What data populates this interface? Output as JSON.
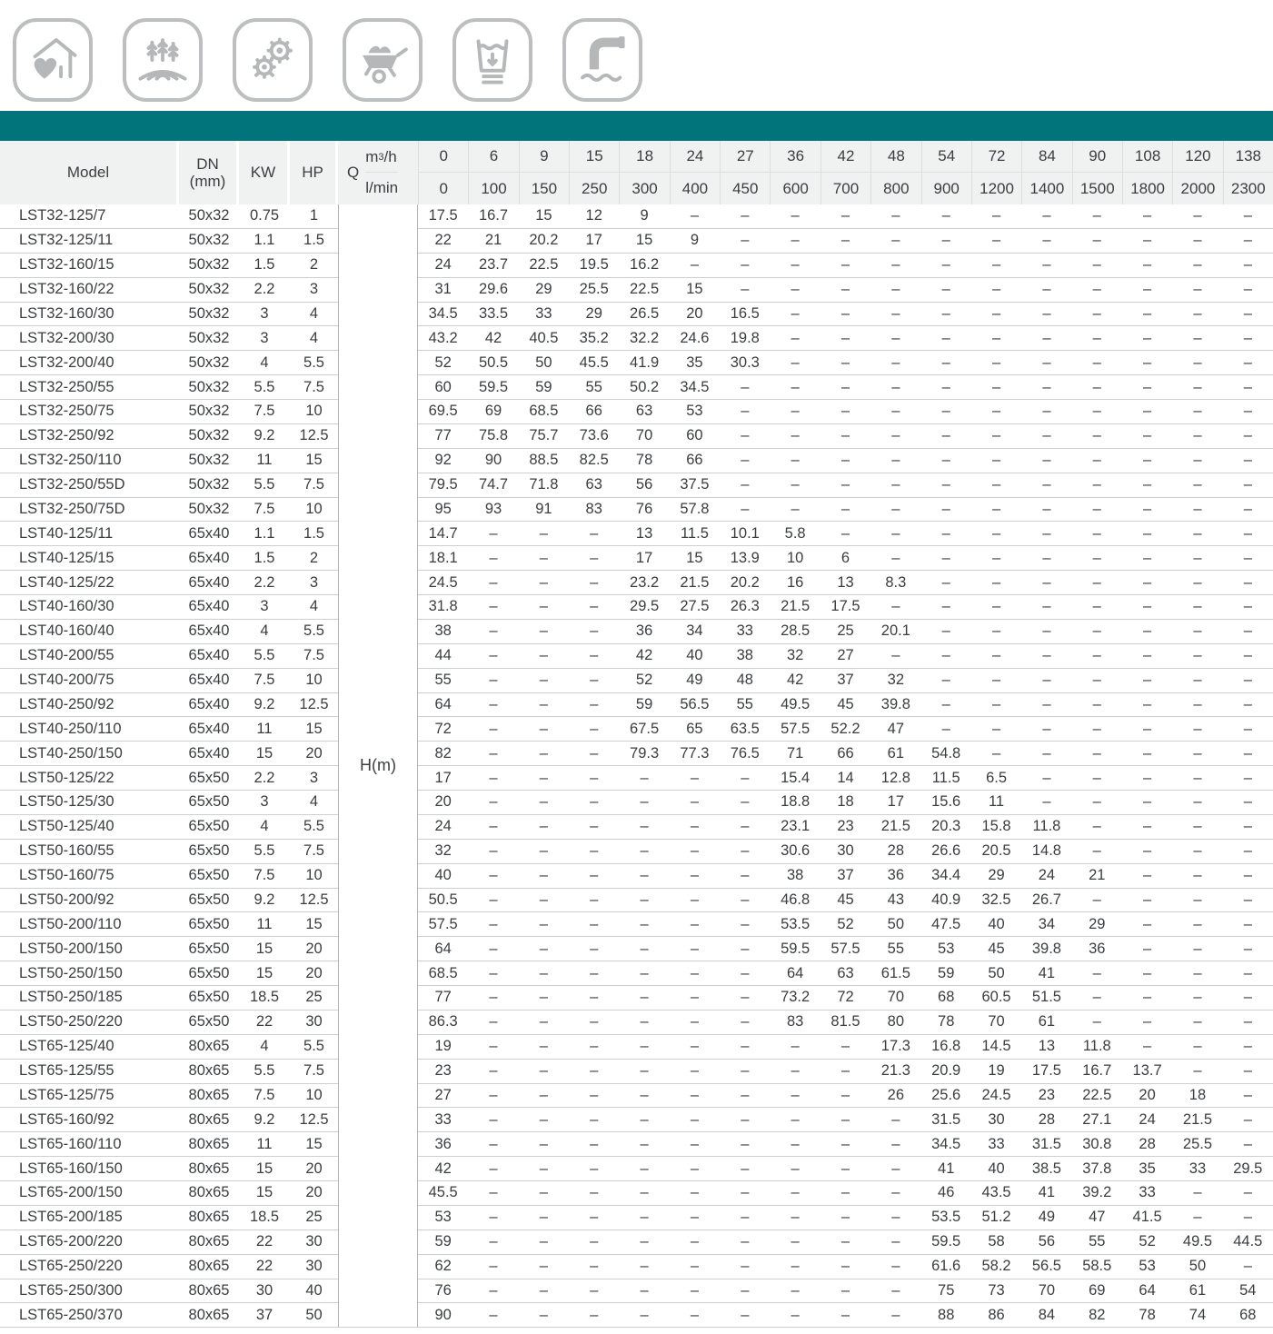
{
  "accent_color": "#00737b",
  "icons": [
    {
      "name": "house-heart-icon",
      "meaning": "domestic use"
    },
    {
      "name": "agriculture-icon",
      "meaning": "irrigation / farming"
    },
    {
      "name": "gears-icon",
      "meaning": "industrial use"
    },
    {
      "name": "wheelbarrow-icon",
      "meaning": "construction"
    },
    {
      "name": "water-tank-icon",
      "meaning": "water supply / drainage"
    },
    {
      "name": "water-pipe-icon",
      "meaning": "water transfer"
    }
  ],
  "header": {
    "model": "Model",
    "dn": "DN\n(mm)",
    "kw": "KW",
    "hp": "HP",
    "q": "Q",
    "unit_top": "m³/h",
    "unit_bottom": "l/min",
    "h_label": "H(m)"
  },
  "flow_m3h": [
    "0",
    "6",
    "9",
    "15",
    "18",
    "24",
    "27",
    "36",
    "42",
    "48",
    "54",
    "72",
    "84",
    "90",
    "108",
    "120",
    "138"
  ],
  "flow_lmin": [
    "0",
    "100",
    "150",
    "250",
    "300",
    "400",
    "450",
    "600",
    "700",
    "800",
    "900",
    "1200",
    "1400",
    "1500",
    "1800",
    "2000",
    "2300"
  ],
  "rows": [
    {
      "model": "LST32-125/7",
      "dn": "50x32",
      "kw": "0.75",
      "hp": "1",
      "h": [
        "17.5",
        "16.7",
        "15",
        "12",
        "9",
        "–",
        "–",
        "–",
        "–",
        "–",
        "–",
        "–",
        "–",
        "–",
        "–",
        "–",
        "–"
      ]
    },
    {
      "model": "LST32-125/11",
      "dn": "50x32",
      "kw": "1.1",
      "hp": "1.5",
      "h": [
        "22",
        "21",
        "20.2",
        "17",
        "15",
        "9",
        "–",
        "–",
        "–",
        "–",
        "–",
        "–",
        "–",
        "–",
        "–",
        "–",
        "–"
      ]
    },
    {
      "model": "LST32-160/15",
      "dn": "50x32",
      "kw": "1.5",
      "hp": "2",
      "h": [
        "24",
        "23.7",
        "22.5",
        "19.5",
        "16.2",
        "–",
        "–",
        "–",
        "–",
        "–",
        "–",
        "–",
        "–",
        "–",
        "–",
        "–",
        "–"
      ]
    },
    {
      "model": "LST32-160/22",
      "dn": "50x32",
      "kw": "2.2",
      "hp": "3",
      "h": [
        "31",
        "29.6",
        "29",
        "25.5",
        "22.5",
        "15",
        "–",
        "–",
        "–",
        "–",
        "–",
        "–",
        "–",
        "–",
        "–",
        "–",
        "–"
      ]
    },
    {
      "model": "LST32-160/30",
      "dn": "50x32",
      "kw": "3",
      "hp": "4",
      "h": [
        "34.5",
        "33.5",
        "33",
        "29",
        "26.5",
        "20",
        "16.5",
        "–",
        "–",
        "–",
        "–",
        "–",
        "–",
        "–",
        "–",
        "–",
        "–"
      ]
    },
    {
      "model": "LST32-200/30",
      "dn": "50x32",
      "kw": "3",
      "hp": "4",
      "h": [
        "43.2",
        "42",
        "40.5",
        "35.2",
        "32.2",
        "24.6",
        "19.8",
        "–",
        "–",
        "–",
        "–",
        "–",
        "–",
        "–",
        "–",
        "–",
        "–"
      ]
    },
    {
      "model": "LST32-200/40",
      "dn": "50x32",
      "kw": "4",
      "hp": "5.5",
      "h": [
        "52",
        "50.5",
        "50",
        "45.5",
        "41.9",
        "35",
        "30.3",
        "–",
        "–",
        "–",
        "–",
        "–",
        "–",
        "–",
        "–",
        "–",
        "–"
      ]
    },
    {
      "model": "LST32-250/55",
      "dn": "50x32",
      "kw": "5.5",
      "hp": "7.5",
      "h": [
        "60",
        "59.5",
        "59",
        "55",
        "50.2",
        "34.5",
        "–",
        "–",
        "–",
        "–",
        "–",
        "–",
        "–",
        "–",
        "–",
        "–",
        "–"
      ]
    },
    {
      "model": "LST32-250/75",
      "dn": "50x32",
      "kw": "7.5",
      "hp": "10",
      "h": [
        "69.5",
        "69",
        "68.5",
        "66",
        "63",
        "53",
        "–",
        "–",
        "–",
        "–",
        "–",
        "–",
        "–",
        "–",
        "–",
        "–",
        "–"
      ]
    },
    {
      "model": "LST32-250/92",
      "dn": "50x32",
      "kw": "9.2",
      "hp": "12.5",
      "h": [
        "77",
        "75.8",
        "75.7",
        "73.6",
        "70",
        "60",
        "–",
        "–",
        "–",
        "–",
        "–",
        "–",
        "–",
        "–",
        "–",
        "–",
        "–"
      ]
    },
    {
      "model": "LST32-250/110",
      "dn": "50x32",
      "kw": "11",
      "hp": "15",
      "h": [
        "92",
        "90",
        "88.5",
        "82.5",
        "78",
        "66",
        "–",
        "–",
        "–",
        "–",
        "–",
        "–",
        "–",
        "–",
        "–",
        "–",
        "–"
      ]
    },
    {
      "model": "LST32-250/55D",
      "dn": "50x32",
      "kw": "5.5",
      "hp": "7.5",
      "h": [
        "79.5",
        "74.7",
        "71.8",
        "63",
        "56",
        "37.5",
        "–",
        "–",
        "–",
        "–",
        "–",
        "–",
        "–",
        "–",
        "–",
        "–",
        "–"
      ]
    },
    {
      "model": "LST32-250/75D",
      "dn": "50x32",
      "kw": "7.5",
      "hp": "10",
      "h": [
        "95",
        "93",
        "91",
        "83",
        "76",
        "57.8",
        "–",
        "–",
        "–",
        "–",
        "–",
        "–",
        "–",
        "–",
        "–",
        "–",
        "–"
      ]
    },
    {
      "model": "LST40-125/11",
      "dn": "65x40",
      "kw": "1.1",
      "hp": "1.5",
      "h": [
        "14.7",
        "–",
        "–",
        "–",
        "13",
        "11.5",
        "10.1",
        "5.8",
        "–",
        "–",
        "–",
        "–",
        "–",
        "–",
        "–",
        "–",
        "–"
      ]
    },
    {
      "model": "LST40-125/15",
      "dn": "65x40",
      "kw": "1.5",
      "hp": "2",
      "h": [
        "18.1",
        "–",
        "–",
        "–",
        "17",
        "15",
        "13.9",
        "10",
        "6",
        "–",
        "–",
        "–",
        "–",
        "–",
        "–",
        "–",
        "–"
      ]
    },
    {
      "model": "LST40-125/22",
      "dn": "65x40",
      "kw": "2.2",
      "hp": "3",
      "h": [
        "24.5",
        "–",
        "–",
        "–",
        "23.2",
        "21.5",
        "20.2",
        "16",
        "13",
        "8.3",
        "–",
        "–",
        "–",
        "–",
        "–",
        "–",
        "–"
      ]
    },
    {
      "model": "LST40-160/30",
      "dn": "65x40",
      "kw": "3",
      "hp": "4",
      "h": [
        "31.8",
        "–",
        "–",
        "–",
        "29.5",
        "27.5",
        "26.3",
        "21.5",
        "17.5",
        "–",
        "–",
        "–",
        "–",
        "–",
        "–",
        "–",
        "–"
      ]
    },
    {
      "model": "LST40-160/40",
      "dn": "65x40",
      "kw": "4",
      "hp": "5.5",
      "h": [
        "38",
        "–",
        "–",
        "–",
        "36",
        "34",
        "33",
        "28.5",
        "25",
        "20.1",
        "–",
        "–",
        "–",
        "–",
        "–",
        "–",
        "–"
      ]
    },
    {
      "model": "LST40-200/55",
      "dn": "65x40",
      "kw": "5.5",
      "hp": "7.5",
      "h": [
        "44",
        "–",
        "–",
        "–",
        "42",
        "40",
        "38",
        "32",
        "27",
        "–",
        "–",
        "–",
        "–",
        "–",
        "–",
        "–",
        "–"
      ]
    },
    {
      "model": "LST40-200/75",
      "dn": "65x40",
      "kw": "7.5",
      "hp": "10",
      "h": [
        "55",
        "–",
        "–",
        "–",
        "52",
        "49",
        "48",
        "42",
        "37",
        "32",
        "–",
        "–",
        "–",
        "–",
        "–",
        "–",
        "–"
      ]
    },
    {
      "model": "LST40-250/92",
      "dn": "65x40",
      "kw": "9.2",
      "hp": "12.5",
      "h": [
        "64",
        "–",
        "–",
        "–",
        "59",
        "56.5",
        "55",
        "49.5",
        "45",
        "39.8",
        "–",
        "–",
        "–",
        "–",
        "–",
        "–",
        "–"
      ]
    },
    {
      "model": "LST40-250/110",
      "dn": "65x40",
      "kw": "11",
      "hp": "15",
      "h": [
        "72",
        "–",
        "–",
        "–",
        "67.5",
        "65",
        "63.5",
        "57.5",
        "52.2",
        "47",
        "–",
        "–",
        "–",
        "–",
        "–",
        "–",
        "–"
      ]
    },
    {
      "model": "LST40-250/150",
      "dn": "65x40",
      "kw": "15",
      "hp": "20",
      "h": [
        "82",
        "–",
        "–",
        "–",
        "79.3",
        "77.3",
        "76.5",
        "71",
        "66",
        "61",
        "54.8",
        "–",
        "–",
        "–",
        "–",
        "–",
        "–"
      ]
    },
    {
      "model": "LST50-125/22",
      "dn": "65x50",
      "kw": "2.2",
      "hp": "3",
      "h": [
        "17",
        "–",
        "–",
        "–",
        "–",
        "–",
        "–",
        "15.4",
        "14",
        "12.8",
        "11.5",
        "6.5",
        "–",
        "–",
        "–",
        "–",
        "–"
      ]
    },
    {
      "model": "LST50-125/30",
      "dn": "65x50",
      "kw": "3",
      "hp": "4",
      "h": [
        "20",
        "–",
        "–",
        "–",
        "–",
        "–",
        "–",
        "18.8",
        "18",
        "17",
        "15.6",
        "11",
        "–",
        "–",
        "–",
        "–",
        "–"
      ]
    },
    {
      "model": "LST50-125/40",
      "dn": "65x50",
      "kw": "4",
      "hp": "5.5",
      "h": [
        "24",
        "–",
        "–",
        "–",
        "–",
        "–",
        "–",
        "23.1",
        "23",
        "21.5",
        "20.3",
        "15.8",
        "11.8",
        "–",
        "–",
        "–",
        "–"
      ]
    },
    {
      "model": "LST50-160/55",
      "dn": "65x50",
      "kw": "5.5",
      "hp": "7.5",
      "h": [
        "32",
        "–",
        "–",
        "–",
        "–",
        "–",
        "–",
        "30.6",
        "30",
        "28",
        "26.6",
        "20.5",
        "14.8",
        "–",
        "–",
        "–",
        "–"
      ]
    },
    {
      "model": "LST50-160/75",
      "dn": "65x50",
      "kw": "7.5",
      "hp": "10",
      "h": [
        "40",
        "–",
        "–",
        "–",
        "–",
        "–",
        "–",
        "38",
        "37",
        "36",
        "34.4",
        "29",
        "24",
        "21",
        "–",
        "–",
        "–"
      ]
    },
    {
      "model": "LST50-200/92",
      "dn": "65x50",
      "kw": "9.2",
      "hp": "12.5",
      "h": [
        "50.5",
        "–",
        "–",
        "–",
        "–",
        "–",
        "–",
        "46.8",
        "45",
        "43",
        "40.9",
        "32.5",
        "26.7",
        "–",
        "–",
        "–",
        "–"
      ]
    },
    {
      "model": "LST50-200/110",
      "dn": "65x50",
      "kw": "11",
      "hp": "15",
      "h": [
        "57.5",
        "–",
        "–",
        "–",
        "–",
        "–",
        "–",
        "53.5",
        "52",
        "50",
        "47.5",
        "40",
        "34",
        "29",
        "–",
        "–",
        "–"
      ]
    },
    {
      "model": "LST50-200/150",
      "dn": "65x50",
      "kw": "15",
      "hp": "20",
      "h": [
        "64",
        "–",
        "–",
        "–",
        "–",
        "–",
        "–",
        "59.5",
        "57.5",
        "55",
        "53",
        "45",
        "39.8",
        "36",
        "–",
        "–",
        "–"
      ]
    },
    {
      "model": "LST50-250/150",
      "dn": "65x50",
      "kw": "15",
      "hp": "20",
      "h": [
        "68.5",
        "–",
        "–",
        "–",
        "–",
        "–",
        "–",
        "64",
        "63",
        "61.5",
        "59",
        "50",
        "41",
        "–",
        "–",
        "–",
        "–"
      ]
    },
    {
      "model": "LST50-250/185",
      "dn": "65x50",
      "kw": "18.5",
      "hp": "25",
      "h": [
        "77",
        "–",
        "–",
        "–",
        "–",
        "–",
        "–",
        "73.2",
        "72",
        "70",
        "68",
        "60.5",
        "51.5",
        "–",
        "–",
        "–",
        "–"
      ]
    },
    {
      "model": "LST50-250/220",
      "dn": "65x50",
      "kw": "22",
      "hp": "30",
      "h": [
        "86.3",
        "–",
        "–",
        "–",
        "–",
        "–",
        "–",
        "83",
        "81.5",
        "80",
        "78",
        "70",
        "61",
        "–",
        "–",
        "–",
        "–"
      ]
    },
    {
      "model": "LST65-125/40",
      "dn": "80x65",
      "kw": "4",
      "hp": "5.5",
      "h": [
        "19",
        "–",
        "–",
        "–",
        "–",
        "–",
        "–",
        "–",
        "–",
        "17.3",
        "16.8",
        "14.5",
        "13",
        "11.8",
        "–",
        "–",
        "–"
      ]
    },
    {
      "model": "LST65-125/55",
      "dn": "80x65",
      "kw": "5.5",
      "hp": "7.5",
      "h": [
        "23",
        "–",
        "–",
        "–",
        "–",
        "–",
        "–",
        "–",
        "–",
        "21.3",
        "20.9",
        "19",
        "17.5",
        "16.7",
        "13.7",
        "–",
        "–"
      ]
    },
    {
      "model": "LST65-125/75",
      "dn": "80x65",
      "kw": "7.5",
      "hp": "10",
      "h": [
        "27",
        "–",
        "–",
        "–",
        "–",
        "–",
        "–",
        "–",
        "–",
        "26",
        "25.6",
        "24.5",
        "23",
        "22.5",
        "20",
        "18",
        "–"
      ]
    },
    {
      "model": "LST65-160/92",
      "dn": "80x65",
      "kw": "9.2",
      "hp": "12.5",
      "h": [
        "33",
        "–",
        "–",
        "–",
        "–",
        "–",
        "–",
        "–",
        "–",
        "–",
        "31.5",
        "30",
        "28",
        "27.1",
        "24",
        "21.5",
        "–"
      ]
    },
    {
      "model": "LST65-160/110",
      "dn": "80x65",
      "kw": "11",
      "hp": "15",
      "h": [
        "36",
        "–",
        "–",
        "–",
        "–",
        "–",
        "–",
        "–",
        "–",
        "–",
        "34.5",
        "33",
        "31.5",
        "30.8",
        "28",
        "25.5",
        "–"
      ]
    },
    {
      "model": "LST65-160/150",
      "dn": "80x65",
      "kw": "15",
      "hp": "20",
      "h": [
        "42",
        "–",
        "–",
        "–",
        "–",
        "–",
        "–",
        "–",
        "–",
        "–",
        "41",
        "40",
        "38.5",
        "37.8",
        "35",
        "33",
        "29.5"
      ]
    },
    {
      "model": "LST65-200/150",
      "dn": "80x65",
      "kw": "15",
      "hp": "20",
      "h": [
        "45.5",
        "–",
        "–",
        "–",
        "–",
        "–",
        "–",
        "–",
        "–",
        "–",
        "46",
        "43.5",
        "41",
        "39.2",
        "33",
        "–",
        "–"
      ]
    },
    {
      "model": "LST65-200/185",
      "dn": "80x65",
      "kw": "18.5",
      "hp": "25",
      "h": [
        "53",
        "–",
        "–",
        "–",
        "–",
        "–",
        "–",
        "–",
        "–",
        "–",
        "53.5",
        "51.2",
        "49",
        "47",
        "41.5",
        "–",
        "–"
      ]
    },
    {
      "model": "LST65-200/220",
      "dn": "80x65",
      "kw": "22",
      "hp": "30",
      "h": [
        "59",
        "–",
        "–",
        "–",
        "–",
        "–",
        "–",
        "–",
        "–",
        "–",
        "59.5",
        "58",
        "56",
        "55",
        "52",
        "49.5",
        "44.5"
      ]
    },
    {
      "model": "LST65-250/220",
      "dn": "80x65",
      "kw": "22",
      "hp": "30",
      "h": [
        "62",
        "–",
        "–",
        "–",
        "–",
        "–",
        "–",
        "–",
        "–",
        "–",
        "61.6",
        "58.2",
        "56.5",
        "58.5",
        "53",
        "50",
        "–"
      ]
    },
    {
      "model": "LST65-250/300",
      "dn": "80x65",
      "kw": "30",
      "hp": "40",
      "h": [
        "76",
        "–",
        "–",
        "–",
        "–",
        "–",
        "–",
        "–",
        "–",
        "–",
        "75",
        "73",
        "70",
        "69",
        "64",
        "61",
        "54"
      ]
    },
    {
      "model": "LST65-250/370",
      "dn": "80x65",
      "kw": "37",
      "hp": "50",
      "h": [
        "90",
        "–",
        "–",
        "–",
        "–",
        "–",
        "–",
        "–",
        "–",
        "–",
        "88",
        "86",
        "84",
        "82",
        "78",
        "74",
        "68"
      ]
    }
  ]
}
